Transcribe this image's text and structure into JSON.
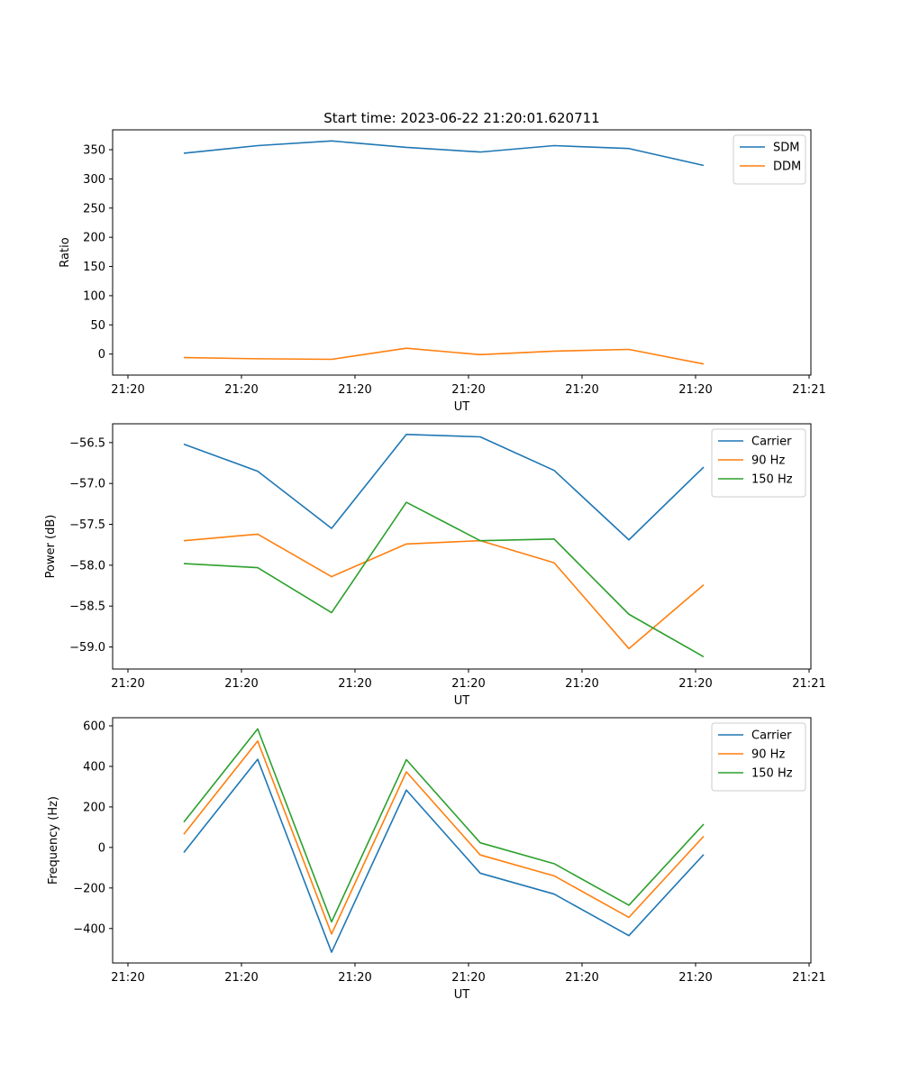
{
  "chart_data": [
    {
      "type": "line",
      "title": "Start time: 2023-06-22 21:20:01.620711",
      "xlabel": "UT",
      "ylabel": "Ratio",
      "x_tick_labels": [
        "21:20",
        "21:20",
        "21:20",
        "21:20",
        "21:20",
        "21:20",
        "21:21"
      ],
      "y_ticks": [
        0,
        50,
        100,
        150,
        200,
        250,
        300,
        350
      ],
      "ylim": [
        -36,
        384
      ],
      "grid": false,
      "legend_position": "top-right",
      "series": [
        {
          "name": "SDM",
          "color": "#1f77b4",
          "values": [
            344,
            357,
            365,
            354,
            346,
            357,
            352,
            323
          ]
        },
        {
          "name": "DDM",
          "color": "#ff7f0e",
          "values": [
            -6,
            -8,
            -9,
            10,
            -1,
            5,
            8,
            -17
          ]
        }
      ]
    },
    {
      "type": "line",
      "title": "",
      "xlabel": "UT",
      "ylabel": "Power (dB)",
      "x_tick_labels": [
        "21:20",
        "21:20",
        "21:20",
        "21:20",
        "21:20",
        "21:20",
        "21:21"
      ],
      "y_ticks": [
        -59.0,
        -58.5,
        -58.0,
        -57.5,
        -57.0,
        -56.5
      ],
      "y_tick_labels": [
        "−59.0",
        "−58.5",
        "−58.0",
        "−57.5",
        "−57.0",
        "−56.5"
      ],
      "ylim": [
        -59.27,
        -56.27
      ],
      "grid": false,
      "legend_position": "top-right",
      "series": [
        {
          "name": "Carrier",
          "color": "#1f77b4",
          "values": [
            -56.52,
            -56.85,
            -57.55,
            -56.4,
            -56.43,
            -56.84,
            -57.69,
            -56.8
          ]
        },
        {
          "name": "90 Hz",
          "color": "#ff7f0e",
          "values": [
            -57.7,
            -57.62,
            -58.14,
            -57.74,
            -57.7,
            -57.97,
            -59.02,
            -58.24
          ]
        },
        {
          "name": "150 Hz",
          "color": "#2ca02c",
          "values": [
            -57.98,
            -58.03,
            -58.58,
            -57.23,
            -57.7,
            -57.68,
            -58.6,
            -59.12
          ]
        }
      ]
    },
    {
      "type": "line",
      "title": "",
      "xlabel": "UT",
      "ylabel": "Frequency (Hz)",
      "x_tick_labels": [
        "21:20",
        "21:20",
        "21:20",
        "21:20",
        "21:20",
        "21:20",
        "21:21"
      ],
      "y_ticks": [
        -400,
        -200,
        0,
        200,
        400,
        600
      ],
      "y_tick_labels": [
        "−400",
        "−200",
        "0",
        "200",
        "400",
        "600"
      ],
      "ylim": [
        -570,
        640
      ],
      "grid": false,
      "legend_position": "top-right",
      "series": [
        {
          "name": "Carrier",
          "color": "#1f77b4",
          "values": [
            -25,
            435,
            -517,
            283,
            -127,
            -230,
            -435,
            -35
          ]
        },
        {
          "name": "90 Hz",
          "color": "#ff7f0e",
          "values": [
            65,
            525,
            -427,
            373,
            -37,
            -140,
            -345,
            55
          ]
        },
        {
          "name": "150 Hz",
          "color": "#2ca02c",
          "values": [
            125,
            585,
            -367,
            433,
            23,
            -80,
            -285,
            115
          ]
        }
      ]
    }
  ]
}
